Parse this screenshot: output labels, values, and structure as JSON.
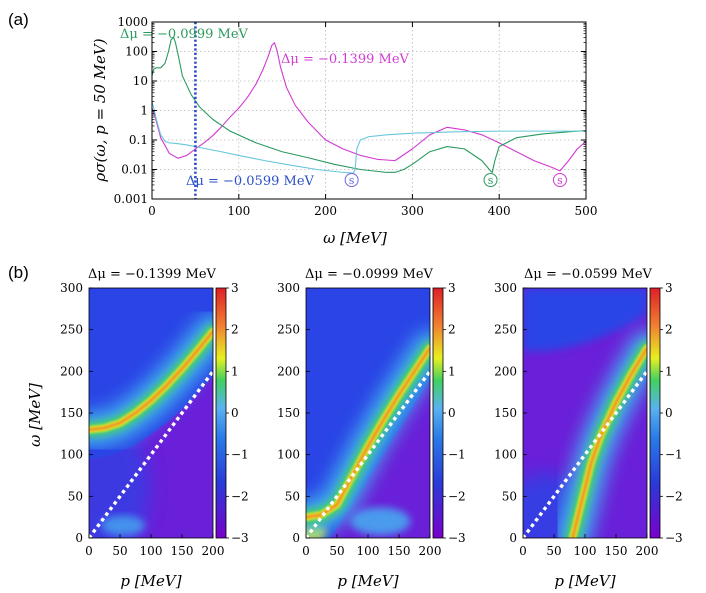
{
  "panel_a_label": "(a)",
  "panel_b_label": "(b)",
  "chart_data": [
    {
      "type": "line",
      "title": "",
      "xlabel": "ω [MeV]",
      "ylabel": "ρσ(ω, p = 50 MeV)",
      "xlim": [
        0,
        500
      ],
      "ylim": [
        0.001,
        1000
      ],
      "yscale": "log",
      "grid": true,
      "x_ticks": [
        "0",
        "100",
        "200",
        "300",
        "400",
        "500"
      ],
      "y_ticks": [
        "0.001",
        "0.01",
        "0.1",
        "1",
        "10",
        "100",
        "1000"
      ],
      "vline": {
        "x": 50,
        "color": "#2b4fc6",
        "style": "dotted"
      },
      "series": [
        {
          "name": "Δμ = −0.1399 MeV",
          "color": "#d23ad2",
          "x": [
            0,
            3,
            10,
            20,
            30,
            40,
            50,
            60,
            70,
            80,
            90,
            100,
            110,
            120,
            128,
            134,
            138,
            141,
            144,
            148,
            155,
            165,
            180,
            200,
            220,
            240,
            260,
            280,
            300,
            320,
            340,
            360,
            380,
            400,
            420,
            440,
            460,
            470,
            480,
            490,
            500
          ],
          "values": [
            1.2,
            0.7,
            0.12,
            0.035,
            0.024,
            0.03,
            0.05,
            0.08,
            0.14,
            0.28,
            0.6,
            1.2,
            2.8,
            8,
            25,
            70,
            160,
            200,
            110,
            30,
            6,
            1.5,
            0.4,
            0.1,
            0.05,
            0.03,
            0.022,
            0.02,
            0.05,
            0.15,
            0.27,
            0.22,
            0.15,
            0.08,
            0.04,
            0.02,
            0.012,
            0.009,
            0.02,
            0.05,
            0.09
          ]
        },
        {
          "name": "Δμ = −0.0999 MeV",
          "color": "#2a9a5e",
          "x": [
            0,
            2,
            5,
            10,
            15,
            19,
            22,
            25,
            27,
            30,
            35,
            45,
            55,
            70,
            90,
            120,
            150,
            180,
            210,
            240,
            270,
            280,
            290,
            300,
            320,
            340,
            360,
            380,
            390,
            392,
            395,
            400,
            420,
            450,
            480,
            500
          ],
          "values": [
            15,
            25,
            28,
            28,
            40,
            100,
            250,
            300,
            200,
            80,
            15,
            3.5,
            1.3,
            0.5,
            0.2,
            0.08,
            0.04,
            0.025,
            0.015,
            0.01,
            0.008,
            0.008,
            0.01,
            0.015,
            0.04,
            0.06,
            0.05,
            0.02,
            0.009,
            0.008,
            0.02,
            0.06,
            0.12,
            0.16,
            0.19,
            0.21
          ]
        },
        {
          "name": "Δμ = −0.0599 MeV",
          "color": "#66c6dd",
          "x": [
            0,
            2,
            5,
            10,
            15,
            20,
            30,
            40,
            50,
            60,
            80,
            100,
            130,
            160,
            190,
            220,
            232,
            234,
            236,
            240,
            250,
            270,
            300,
            350,
            400,
            450,
            500
          ],
          "values": [
            2,
            1.2,
            0.5,
            0.15,
            0.09,
            0.08,
            0.075,
            0.068,
            0.06,
            0.052,
            0.04,
            0.03,
            0.02,
            0.014,
            0.01,
            0.008,
            0.0075,
            0.01,
            0.05,
            0.1,
            0.13,
            0.15,
            0.17,
            0.19,
            0.2,
            0.2,
            0.2
          ]
        }
      ],
      "annotations": [
        {
          "text": "Δμ = −0.0999 MeV",
          "color": "#2a9a5e"
        },
        {
          "text": "Δμ = −0.1399 MeV",
          "color": "#d23ad2"
        },
        {
          "text": "Δμ = −0.0599 MeV",
          "color": "#2b4fc6"
        },
        {
          "text": "s",
          "color": "#6a6ae0",
          "x": 230,
          "y": 0.005
        },
        {
          "text": "s",
          "color": "#2a9a5e",
          "x": 390,
          "y": 0.005
        },
        {
          "text": "s",
          "color": "#d23ad2",
          "x": 470,
          "y": 0.005
        }
      ]
    },
    {
      "type": "heatmap",
      "title": "Δμ = −0.1399 MeV",
      "xlabel": "p [MeV]",
      "ylabel": "ω [MeV]",
      "xlim": [
        0,
        200
      ],
      "ylim": [
        0,
        300
      ],
      "x_ticks": [
        "0",
        "50",
        "100",
        "150",
        "200"
      ],
      "y_ticks": [
        "0",
        "50",
        "100",
        "150",
        "200",
        "250",
        "300"
      ],
      "colorbar": {
        "range": [
          -3,
          3
        ],
        "ticks": [
          "3",
          "2",
          "1",
          "0",
          "−1",
          "−2",
          "−3"
        ]
      },
      "ridge": {
        "p": [
          0,
          25,
          50,
          75,
          100,
          125,
          150,
          175,
          200
        ],
        "omega": [
          130,
          132,
          138,
          150,
          165,
          183,
          203,
          225,
          248
        ]
      },
      "dashed_line": {
        "p": [
          0,
          200
        ],
        "omega": [
          0,
          200
        ]
      }
    },
    {
      "type": "heatmap",
      "title": "Δμ = −0.0999 MeV",
      "xlabel": "p [MeV]",
      "ylabel": "",
      "xlim": [
        0,
        200
      ],
      "ylim": [
        0,
        300
      ],
      "x_ticks": [
        "0",
        "50",
        "100",
        "150",
        "200"
      ],
      "y_ticks": [
        "0",
        "50",
        "100",
        "150",
        "200",
        "250",
        "300"
      ],
      "colorbar": {
        "range": [
          -3,
          3
        ],
        "ticks": [
          "3",
          "2",
          "1",
          "0",
          "−1",
          "−2",
          "−3"
        ]
      },
      "ridge": {
        "p": [
          0,
          25,
          50,
          75,
          100,
          125,
          150,
          175,
          200
        ],
        "omega": [
          25,
          28,
          40,
          75,
          110,
          142,
          172,
          200,
          228
        ]
      },
      "dashed_line": {
        "p": [
          0,
          200
        ],
        "omega": [
          0,
          200
        ]
      }
    },
    {
      "type": "heatmap",
      "title": "Δμ = −0.0599 MeV",
      "xlabel": "p [MeV]",
      "ylabel": "",
      "xlim": [
        0,
        200
      ],
      "ylim": [
        0,
        300
      ],
      "x_ticks": [
        "0",
        "50",
        "100",
        "150",
        "200"
      ],
      "y_ticks": [
        "0",
        "50",
        "100",
        "150",
        "200",
        "250",
        "300"
      ],
      "colorbar": {
        "range": [
          -3,
          3
        ],
        "ticks": [
          "3",
          "2",
          "1",
          "0",
          "−1",
          "−2",
          "−3"
        ]
      },
      "ridge": {
        "p": [
          80,
          90,
          100,
          110,
          125,
          150,
          175,
          200
        ],
        "omega": [
          0,
          30,
          60,
          90,
          122,
          163,
          197,
          228
        ]
      },
      "dashed_line": {
        "p": [
          0,
          200
        ],
        "omega": [
          0,
          200
        ]
      }
    }
  ]
}
